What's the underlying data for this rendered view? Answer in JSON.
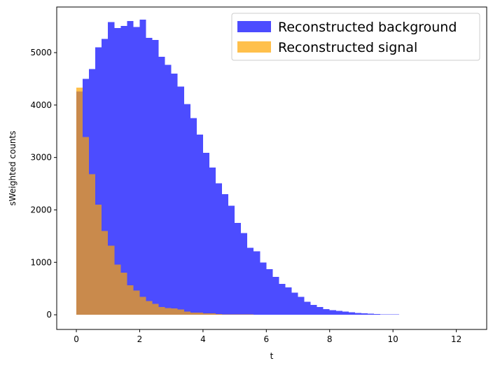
{
  "chart_data": {
    "type": "bar",
    "title": "",
    "xlabel": "t",
    "ylabel": "sWeighted counts",
    "xlim": [
      -0.62,
      12.96
    ],
    "ylim": [
      -280,
      5870
    ],
    "xticks": [
      0,
      2,
      4,
      6,
      8,
      10,
      12
    ],
    "yticks": [
      0,
      1000,
      2000,
      3000,
      4000,
      5000
    ],
    "grid": false,
    "legend_position": "top-right",
    "bin_start": 0,
    "bin_width": 0.2,
    "series": [
      {
        "name": "Reconstructed background",
        "color": "#0000ff",
        "opacity": 0.7,
        "values": [
          4260,
          4500,
          4690,
          5100,
          5260,
          5580,
          5470,
          5510,
          5600,
          5490,
          5630,
          5280,
          5240,
          4920,
          4770,
          4600,
          4350,
          4020,
          3750,
          3440,
          3090,
          2810,
          2510,
          2300,
          2080,
          1750,
          1560,
          1280,
          1210,
          1000,
          870,
          720,
          590,
          520,
          420,
          340,
          250,
          190,
          150,
          110,
          90,
          75,
          60,
          45,
          35,
          25,
          20,
          15,
          10,
          5,
          5,
          0,
          0,
          0,
          0
        ]
      },
      {
        "name": "Reconstructed signal",
        "color": "#ffa500",
        "opacity": 0.7,
        "values": [
          4330,
          3390,
          2680,
          2100,
          1600,
          1320,
          960,
          800,
          560,
          460,
          340,
          260,
          210,
          150,
          130,
          120,
          100,
          60,
          40,
          40,
          30,
          30,
          15,
          10,
          10,
          5,
          5,
          5,
          3,
          3,
          2,
          2,
          1,
          1,
          1,
          0,
          0,
          0,
          0,
          0,
          0,
          0,
          0,
          0,
          0,
          0,
          0,
          0,
          0,
          0,
          0,
          0,
          0,
          0,
          0
        ]
      }
    ]
  }
}
